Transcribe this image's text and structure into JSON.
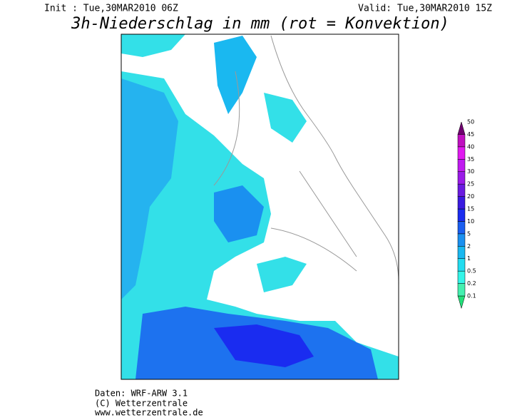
{
  "header": {
    "init": "Init : Tue,30MAR2010 06Z",
    "valid": "Valid: Tue,30MAR2010 15Z",
    "title": "3h-Niederschlag in mm (rot = Konvektion)"
  },
  "colorbar": {
    "labels": [
      "0.1",
      "0.2",
      "0.5",
      "1",
      "2",
      "5",
      "10",
      "15",
      "20",
      "25",
      "30",
      "35",
      "40",
      "45",
      "50"
    ],
    "colors": [
      "#22e07a",
      "#44f0b0",
      "#33f5e8",
      "#22dcf0",
      "#1ab8f0",
      "#1a90f0",
      "#1a5ef0",
      "#1a2cf0",
      "#3a1ae0",
      "#6a1ae0",
      "#9a1ae8",
      "#c01af0",
      "#e01af0",
      "#c010c0",
      "#700070"
    ]
  },
  "footer": {
    "lines": [
      "Daten: WRF-ARW 3.1",
      "(C) Wetterzentrale",
      "www.wetterzentrale.de"
    ]
  }
}
